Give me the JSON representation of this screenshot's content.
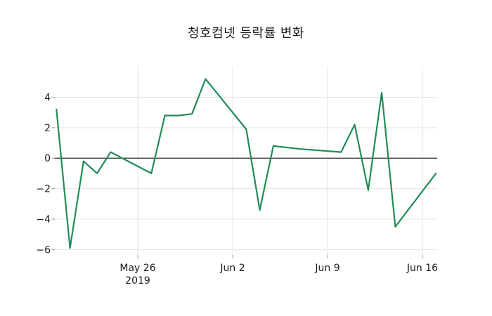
{
  "chart_data": {
    "type": "line",
    "title": "청호컴넷 등락률 변화",
    "xlabel": "",
    "ylabel": "",
    "grid": true,
    "legend": "none",
    "ylim": [
      -6.35,
      6.05
    ],
    "xlim": [
      "2019-05-19",
      "2019-06-18"
    ],
    "y_ticks": [
      4,
      2,
      0,
      -2,
      -4,
      -6
    ],
    "y_tick_labels": [
      "4",
      "2",
      "0",
      "−2",
      "−4",
      "−6"
    ],
    "x_ticks": [
      {
        "date": "2019-05-26",
        "label": "May 26",
        "sublabel": "2019"
      },
      {
        "date": "2019-06-02",
        "label": "Jun 2",
        "sublabel": ""
      },
      {
        "date": "2019-06-09",
        "label": "Jun 9",
        "sublabel": ""
      },
      {
        "date": "2019-06-16",
        "label": "Jun 16",
        "sublabel": ""
      }
    ],
    "series": [
      {
        "name": "등락률",
        "color": "#218c57",
        "points": [
          {
            "date": "2019-05-20",
            "value": 3.2
          },
          {
            "date": "2019-05-21",
            "value": -5.9
          },
          {
            "date": "2019-05-22",
            "value": -0.2
          },
          {
            "date": "2019-05-23",
            "value": -1.0
          },
          {
            "date": "2019-05-24",
            "value": 0.4
          },
          {
            "date": "2019-05-27",
            "value": -1.0
          },
          {
            "date": "2019-05-28",
            "value": 2.8
          },
          {
            "date": "2019-05-29",
            "value": 2.8
          },
          {
            "date": "2019-05-30",
            "value": 2.9
          },
          {
            "date": "2019-05-31",
            "value": 5.2
          },
          {
            "date": "2019-06-03",
            "value": 1.9
          },
          {
            "date": "2019-06-04",
            "value": -3.4
          },
          {
            "date": "2019-06-05",
            "value": 0.8
          },
          {
            "date": "2019-06-07",
            "value": 0.6
          },
          {
            "date": "2019-06-10",
            "value": 0.4
          },
          {
            "date": "2019-06-11",
            "value": 2.2
          },
          {
            "date": "2019-06-12",
            "value": -2.1
          },
          {
            "date": "2019-06-13",
            "value": 4.3
          },
          {
            "date": "2019-06-14",
            "value": -4.5
          },
          {
            "date": "2019-06-17",
            "value": -1.0
          }
        ]
      }
    ],
    "zero_line": true,
    "colors": {
      "line": "#218c57",
      "grid": "#e4e4e4",
      "zero_line": "#2e2e2e",
      "tick_mark": "#999999",
      "text": "#1a1a1a",
      "background": "#ffffff"
    }
  }
}
